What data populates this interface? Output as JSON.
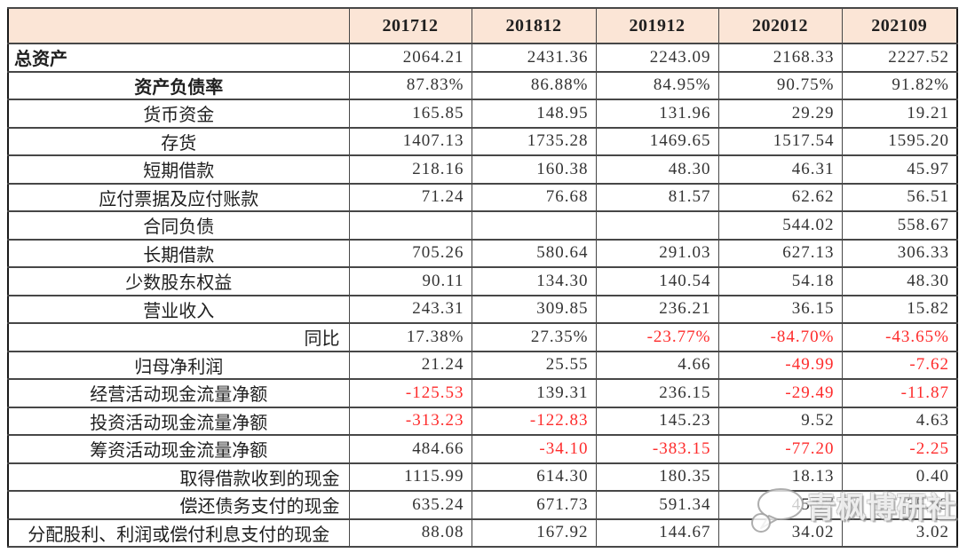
{
  "chart_data": {
    "type": "table",
    "unit_note": "",
    "columns": [
      "",
      "201712",
      "201812",
      "201912",
      "202012",
      "202109"
    ],
    "rows": [
      {
        "label": "总资产",
        "bold": true,
        "align": "left",
        "values": [
          "2064.21",
          "2431.36",
          "2243.09",
          "2168.33",
          "2227.52"
        ]
      },
      {
        "label": "资产负债率",
        "bold": true,
        "align": "center",
        "values": [
          "87.83%",
          "86.88%",
          "84.95%",
          "90.75%",
          "91.82%"
        ]
      },
      {
        "label": "货币资金",
        "bold": false,
        "align": "center",
        "values": [
          "165.85",
          "148.95",
          "131.96",
          "29.29",
          "19.21"
        ]
      },
      {
        "label": "存货",
        "bold": false,
        "align": "center",
        "values": [
          "1407.13",
          "1735.28",
          "1469.65",
          "1517.54",
          "1595.20"
        ]
      },
      {
        "label": "短期借款",
        "bold": false,
        "align": "center",
        "values": [
          "218.16",
          "160.38",
          "48.30",
          "46.31",
          "45.97"
        ]
      },
      {
        "label": "应付票据及应付账款",
        "bold": false,
        "align": "center",
        "values": [
          "71.24",
          "76.68",
          "81.57",
          "62.62",
          "56.51"
        ]
      },
      {
        "label": "合同负债",
        "bold": false,
        "align": "center",
        "values": [
          "",
          "",
          "",
          "544.02",
          "558.67"
        ]
      },
      {
        "label": "长期借款",
        "bold": false,
        "align": "center",
        "values": [
          "705.26",
          "580.64",
          "291.03",
          "627.13",
          "306.33"
        ]
      },
      {
        "label": "少数股东权益",
        "bold": false,
        "align": "center",
        "values": [
          "90.11",
          "134.30",
          "140.54",
          "54.18",
          "48.30"
        ]
      },
      {
        "label": "营业收入",
        "bold": false,
        "align": "center",
        "values": [
          "243.31",
          "309.85",
          "236.21",
          "36.15",
          "15.82"
        ]
      },
      {
        "label": "同比",
        "bold": false,
        "align": "right",
        "values": [
          "17.38%",
          "27.35%",
          "-23.77%",
          "-84.70%",
          "-43.65%"
        ]
      },
      {
        "label": "归母净利润",
        "bold": false,
        "align": "center",
        "values": [
          "21.24",
          "25.55",
          "4.66",
          "-49.99",
          "-7.62"
        ]
      },
      {
        "label": "经营活动现金流量净额",
        "bold": false,
        "align": "center",
        "values": [
          "-125.53",
          "139.31",
          "236.15",
          "-29.49",
          "-11.87"
        ]
      },
      {
        "label": "投资活动现金流量净额",
        "bold": false,
        "align": "center",
        "values": [
          "-313.23",
          "-122.83",
          "145.23",
          "9.52",
          "4.63"
        ]
      },
      {
        "label": "筹资活动现金流量净额",
        "bold": false,
        "align": "center",
        "values": [
          "484.66",
          "-34.10",
          "-383.15",
          "-77.20",
          "-2.25"
        ]
      },
      {
        "label": "取得借款收到的现金",
        "bold": false,
        "align": "right",
        "values": [
          "1115.99",
          "614.30",
          "180.35",
          "18.13",
          "0.40"
        ]
      },
      {
        "label": "偿还债务支付的现金",
        "bold": false,
        "align": "right",
        "values": [
          "635.24",
          "671.73",
          "591.34",
          "45.97",
          "35.53"
        ]
      },
      {
        "label": "分配股利、利润或偿付利息支付的现金",
        "bold": false,
        "align": "center",
        "values": [
          "88.08",
          "167.92",
          "144.67",
          "34.02",
          "3.02"
        ]
      }
    ]
  },
  "watermark": {
    "text": "青枫博研社",
    "icon": "chat-bubbles-icon"
  },
  "colors": {
    "header_bg": "#fbe5d6",
    "negative": "#fe2c2c",
    "text": "#2b2b2b",
    "border": "#474747"
  }
}
